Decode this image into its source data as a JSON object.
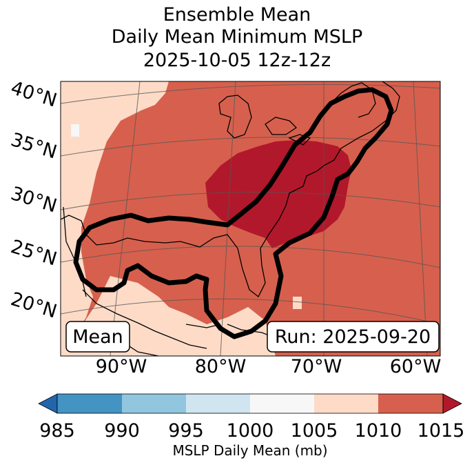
{
  "title": {
    "line1": "Ensemble Mean",
    "line2": "Daily Mean Minimum MSLP",
    "line3": "2025-10-05 12z-12z"
  },
  "map": {
    "lat_labels": [
      "40°N",
      "35°N",
      "30°N",
      "25°N",
      "20°N"
    ],
    "lon_labels": [
      "90°W",
      "80°W",
      "70°W",
      "60°W"
    ],
    "mean_box": "Mean",
    "run_box": "Run: 2025-09-20",
    "colors": {
      "c1005": "#fddbc7",
      "c1010": "#d6604d",
      "c1015": "#b2182b",
      "outline": "#000000"
    }
  },
  "colorbar": {
    "label": "MSLP Daily Mean (mb)",
    "ticks": [
      "985",
      "990",
      "995",
      "1000",
      "1005",
      "1010",
      "1015"
    ],
    "colors": [
      "#2166ac",
      "#4393c3",
      "#92c5de",
      "#d1e5f0",
      "#f7f7f7",
      "#fddbc7",
      "#d6604d",
      "#b2182b"
    ]
  }
}
